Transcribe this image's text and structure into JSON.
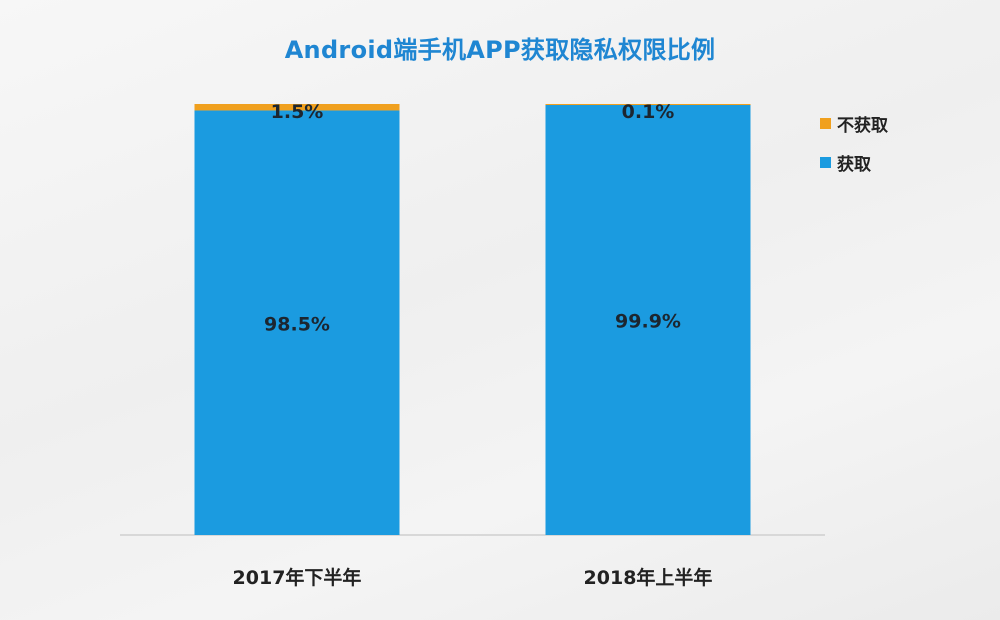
{
  "chart_data": {
    "type": "bar",
    "stacked": true,
    "percent": true,
    "title": "Android端手机APP获取隐私权限比例",
    "categories": [
      "2017年下半年",
      "2018年上半年"
    ],
    "series": [
      {
        "name": "获取",
        "values": [
          98.5,
          99.9
        ],
        "labels": [
          "98.5%",
          "99.9%"
        ],
        "color": "#1b9be0"
      },
      {
        "name": "不获取",
        "values": [
          1.5,
          0.1
        ],
        "labels": [
          "1.5%",
          "0.1%"
        ],
        "color": "#f0a01e"
      }
    ],
    "ylim": [
      0,
      100
    ],
    "legend_position": "top-right",
    "legend": [
      {
        "name": "不获取",
        "color": "#f0a01e"
      },
      {
        "name": "获取",
        "color": "#1b9be0"
      }
    ],
    "grid": false
  }
}
